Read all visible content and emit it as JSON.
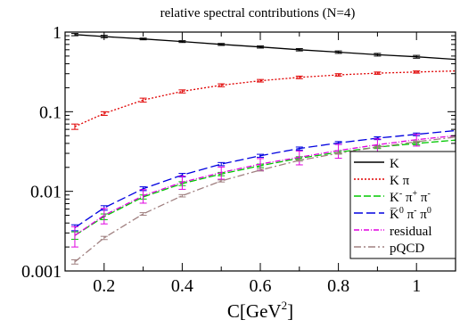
{
  "chart_data": {
    "type": "line",
    "title": "relative spectral contributions (N=4)",
    "xlabel": "C[GeV",
    "xlabel_sup": "2",
    "xlabel_end": "]",
    "ylabel": "",
    "xlim": [
      0.1,
      1.1
    ],
    "ylim": [
      0.001,
      1
    ],
    "yscale": "log",
    "grid": false,
    "legend_position": "bottom-right",
    "x_ticks": [
      0.2,
      0.4,
      0.6,
      0.8,
      1
    ],
    "x_tick_labels": [
      "0.2",
      "0.4",
      "0.6",
      "0.8",
      "1"
    ],
    "y_ticks": [
      0.001,
      0.01,
      0.1,
      1
    ],
    "y_tick_labels": [
      "0.001",
      "0.01",
      "0.1",
      "1"
    ],
    "x": [
      0.125,
      0.2,
      0.3,
      0.4,
      0.5,
      0.6,
      0.7,
      0.8,
      0.9,
      1.0,
      1.1
    ],
    "series": [
      {
        "name": "K",
        "color": "#000000",
        "dash": "",
        "values": [
          0.93,
          0.88,
          0.82,
          0.76,
          0.7,
          0.65,
          0.6,
          0.56,
          0.52,
          0.49,
          0.455
        ],
        "err_lo": [
          0.9,
          0.85,
          0.8,
          0.74,
          0.68,
          0.63,
          0.58,
          0.54,
          0.5,
          0.47,
          0.44
        ],
        "err_hi": [
          0.96,
          0.91,
          0.84,
          0.78,
          0.72,
          0.67,
          0.62,
          0.58,
          0.54,
          0.51,
          0.47
        ]
      },
      {
        "name": "K π",
        "color": "#e00000",
        "dash": "2,2",
        "values": [
          0.065,
          0.095,
          0.14,
          0.18,
          0.215,
          0.245,
          0.27,
          0.29,
          0.305,
          0.315,
          0.325
        ],
        "err_lo": [
          0.06,
          0.09,
          0.132,
          0.172,
          0.206,
          0.236,
          0.26,
          0.28,
          0.295,
          0.305,
          0.315
        ],
        "err_hi": [
          0.07,
          0.1,
          0.148,
          0.188,
          0.224,
          0.254,
          0.28,
          0.3,
          0.315,
          0.325,
          0.335
        ]
      },
      {
        "name": "K",
        "sup1": "-",
        "mid": " π",
        "sup2": "+",
        "mid2": " π",
        "sup3": "-",
        "color": "#00c800",
        "dash": "8,3",
        "values": [
          0.0028,
          0.0048,
          0.0085,
          0.0125,
          0.0165,
          0.021,
          0.026,
          0.031,
          0.036,
          0.04,
          0.044
        ],
        "err_lo": [
          0.0025,
          0.0044,
          0.008,
          0.0118,
          0.0157,
          0.02,
          0.0248,
          0.0296,
          0.0344,
          0.0383,
          0.042
        ],
        "err_hi": [
          0.0031,
          0.0052,
          0.009,
          0.0132,
          0.0173,
          0.022,
          0.0272,
          0.0324,
          0.0376,
          0.0417,
          0.046
        ]
      },
      {
        "name": "K",
        "over": "_",
        "sup1": "0",
        "mid": " π",
        "sup2": "-",
        "mid2": " π",
        "sup3": "0",
        "color": "#0000e0",
        "dash": "10,4",
        "values": [
          0.0035,
          0.0062,
          0.0108,
          0.016,
          0.022,
          0.028,
          0.0345,
          0.0405,
          0.0465,
          0.052,
          0.058
        ],
        "err_lo": [
          0.0032,
          0.0058,
          0.0102,
          0.0152,
          0.021,
          0.0268,
          0.033,
          0.0388,
          0.0446,
          0.05,
          0.056
        ],
        "err_hi": [
          0.0038,
          0.0066,
          0.0114,
          0.0168,
          0.023,
          0.0292,
          0.036,
          0.0422,
          0.0484,
          0.054,
          0.06
        ]
      },
      {
        "name": "residual",
        "color": "#e000e0",
        "dash": "6,2,1,2",
        "values": [
          0.0028,
          0.005,
          0.0088,
          0.013,
          0.0172,
          0.022,
          0.0268,
          0.0325,
          0.0385,
          0.0445,
          0.05
        ],
        "err_lo": [
          0.002,
          0.0039,
          0.0071,
          0.0106,
          0.0142,
          0.0182,
          0.0215,
          0.026,
          0.0315,
          0.037,
          0.042
        ],
        "err_hi": [
          0.0036,
          0.0061,
          0.0105,
          0.0155,
          0.0202,
          0.0258,
          0.0321,
          0.039,
          0.0455,
          0.052,
          0.058
        ]
      },
      {
        "name": "pQCD",
        "color": "#a08080",
        "dash": "8,3,2,3",
        "values": [
          0.0013,
          0.0026,
          0.0052,
          0.0088,
          0.0135,
          0.0185,
          0.0245,
          0.03,
          0.036,
          0.042,
          0.048
        ],
        "err_lo": [
          0.00122,
          0.00248,
          0.005,
          0.0085,
          0.0131,
          0.018,
          0.0239,
          0.0293,
          0.0352,
          0.0411,
          0.047
        ],
        "err_hi": [
          0.00138,
          0.00272,
          0.0054,
          0.0091,
          0.0139,
          0.019,
          0.0251,
          0.0307,
          0.0368,
          0.0429,
          0.049
        ]
      }
    ]
  }
}
